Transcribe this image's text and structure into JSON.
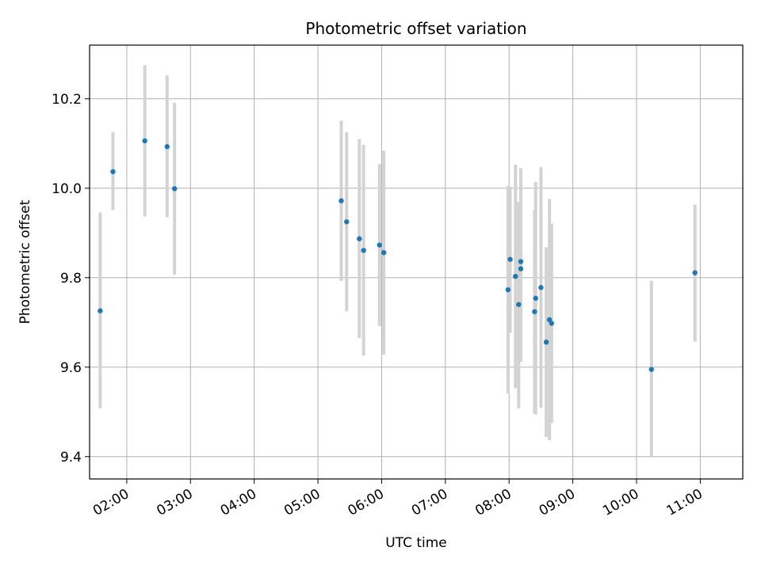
{
  "chart_data": {
    "type": "scatter",
    "title": "Photometric offset variation",
    "xlabel": "UTC time",
    "ylabel": "Photometric offset",
    "grid": true,
    "x_axis_type": "time",
    "xlim": [
      "01:25",
      "11:40"
    ],
    "ylim": [
      9.35,
      10.32
    ],
    "x_ticks": [
      "02:00",
      "03:00",
      "04:00",
      "05:00",
      "06:00",
      "07:00",
      "08:00",
      "09:00",
      "10:00",
      "11:00"
    ],
    "y_ticks": [
      "9.4",
      "9.6",
      "9.8",
      "10.0",
      "10.2"
    ],
    "marker_color": "#1f77b4",
    "errorbar_color": "#d3d3d3",
    "points": [
      {
        "x": "01:35",
        "y": 9.726,
        "low": 9.508,
        "high": 9.946
      },
      {
        "x": "01:47",
        "y": 10.037,
        "low": 9.951,
        "high": 10.125
      },
      {
        "x": "02:17",
        "y": 10.106,
        "low": 9.937,
        "high": 10.275
      },
      {
        "x": "02:38",
        "y": 10.093,
        "low": 9.935,
        "high": 10.252
      },
      {
        "x": "02:45",
        "y": 9.999,
        "low": 9.807,
        "high": 10.191
      },
      {
        "x": "05:22",
        "y": 9.972,
        "low": 9.793,
        "high": 10.151
      },
      {
        "x": "05:27",
        "y": 9.925,
        "low": 9.725,
        "high": 10.125
      },
      {
        "x": "05:39",
        "y": 9.887,
        "low": 9.665,
        "high": 10.11
      },
      {
        "x": "05:43",
        "y": 9.861,
        "low": 9.626,
        "high": 10.097
      },
      {
        "x": "05:58",
        "y": 9.873,
        "low": 9.692,
        "high": 10.054
      },
      {
        "x": "06:02",
        "y": 9.856,
        "low": 9.628,
        "high": 10.084
      },
      {
        "x": "07:59",
        "y": 9.773,
        "low": 9.541,
        "high": 10.005
      },
      {
        "x": "08:01",
        "y": 9.841,
        "low": 9.677,
        "high": 10.003
      },
      {
        "x": "08:06",
        "y": 9.803,
        "low": 9.553,
        "high": 10.053
      },
      {
        "x": "08:09",
        "y": 9.74,
        "low": 9.508,
        "high": 9.97
      },
      {
        "x": "08:11",
        "y": 9.82,
        "low": 9.612,
        "high": 10.028
      },
      {
        "x": "08:11",
        "y": 9.836,
        "low": 9.627,
        "high": 10.045
      },
      {
        "x": "08:24",
        "y": 9.724,
        "low": 9.496,
        "high": 9.952
      },
      {
        "x": "08:25",
        "y": 9.754,
        "low": 9.494,
        "high": 10.014
      },
      {
        "x": "08:30",
        "y": 9.778,
        "low": 9.509,
        "high": 10.047
      },
      {
        "x": "08:35",
        "y": 9.656,
        "low": 9.444,
        "high": 9.868
      },
      {
        "x": "08:38",
        "y": 9.706,
        "low": 9.437,
        "high": 9.976
      },
      {
        "x": "08:40",
        "y": 9.698,
        "low": 9.475,
        "high": 9.921
      },
      {
        "x": "10:14",
        "y": 9.595,
        "low": 9.398,
        "high": 9.793
      },
      {
        "x": "10:55",
        "y": 9.811,
        "low": 9.657,
        "high": 9.963
      }
    ]
  }
}
